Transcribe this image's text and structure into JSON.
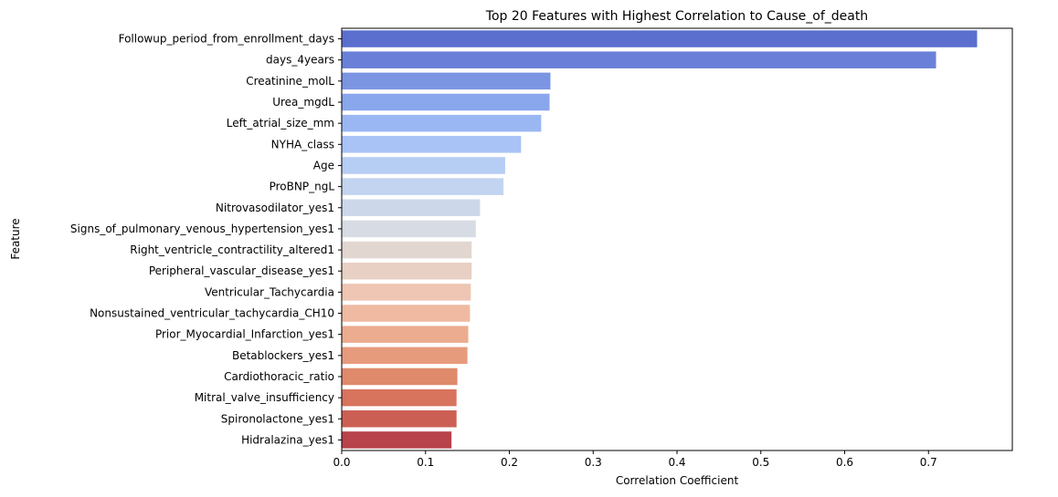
{
  "chart_data": {
    "type": "bar",
    "orientation": "horizontal",
    "title": "Top 20 Features with Highest Correlation to Cause_of_death",
    "xlabel": "Correlation Coefficient",
    "ylabel": "Feature",
    "xlim": [
      0,
      0.8
    ],
    "xticks": [
      "0.0",
      "0.1",
      "0.2",
      "0.3",
      "0.4",
      "0.5",
      "0.6",
      "0.7"
    ],
    "grid": false,
    "palette": "coolwarm",
    "categories": [
      "Followup_period_from_enrollment_days",
      "days_4years",
      "Creatinine_molL",
      "Urea_mgdL",
      "Left_atrial_size_mm",
      "NYHA_class",
      "Age",
      "ProBNP_ngL",
      "Nitrovasodilator_yes1",
      "Signs_of_pulmonary_venous_hypertension_yes1",
      "Right_ventricle_contractility_altered1",
      "Peripheral_vascular_disease_yes1",
      "Ventricular_Tachycardia",
      "Nonsustained_ventricular_tachycardia_CH10",
      "Prior_Myocardial_Infarction_yes1",
      "Betablockers_yes1",
      "Cardiothoracic_ratio",
      "Mitral_valve_insufficiency",
      "Spironolactone_yes1",
      "Hidralazina_yes1"
    ],
    "values": [
      0.758,
      0.709,
      0.249,
      0.248,
      0.238,
      0.214,
      0.195,
      0.193,
      0.165,
      0.16,
      0.155,
      0.155,
      0.154,
      0.153,
      0.151,
      0.15,
      0.138,
      0.137,
      0.137,
      0.131
    ],
    "colors": [
      "#5b6fcf",
      "#6a80d8",
      "#7b95e3",
      "#8aa6ec",
      "#9bb7f3",
      "#a9c3f6",
      "#b6cdf4",
      "#c2d4f0",
      "#ccd8ea",
      "#d7dbe4",
      "#e2d6d1",
      "#e8d0c4",
      "#eec6b3",
      "#efbaa1",
      "#ecac8f",
      "#e79b7d",
      "#e08a6c",
      "#d8735d",
      "#cc5f53",
      "#b8434a"
    ]
  }
}
